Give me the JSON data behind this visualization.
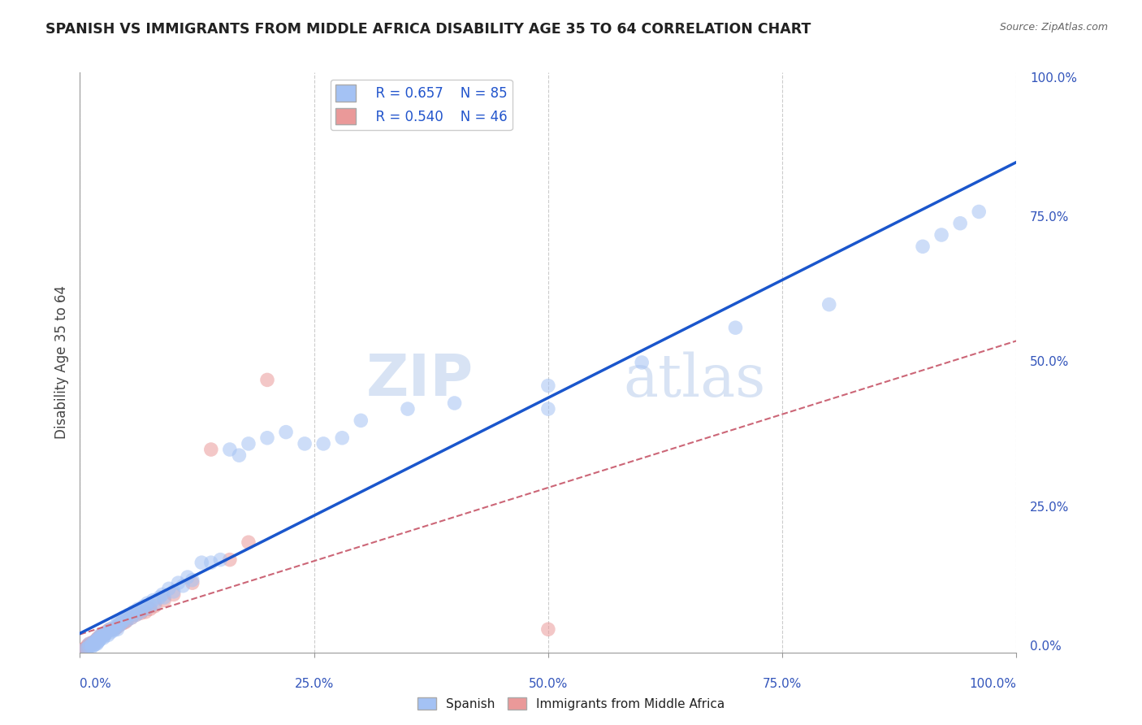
{
  "title": "SPANISH VS IMMIGRANTS FROM MIDDLE AFRICA DISABILITY AGE 35 TO 64 CORRELATION CHART",
  "source": "Source: ZipAtlas.com",
  "ylabel": "Disability Age 35 to 64",
  "legend1_R": "0.657",
  "legend1_N": "85",
  "legend2_R": "0.540",
  "legend2_N": "46",
  "blue_color": "#a4c2f4",
  "pink_color": "#ea9999",
  "trendline_blue": "#1a56cc",
  "trendline_pink": "#cc6677",
  "watermark_zip": "ZIP",
  "watermark_atlas": "atlas",
  "blue_scatter_x": [
    0.005,
    0.008,
    0.01,
    0.01,
    0.012,
    0.013,
    0.013,
    0.015,
    0.015,
    0.016,
    0.017,
    0.018,
    0.018,
    0.019,
    0.02,
    0.02,
    0.021,
    0.022,
    0.022,
    0.023,
    0.025,
    0.025,
    0.026,
    0.027,
    0.028,
    0.03,
    0.031,
    0.032,
    0.033,
    0.035,
    0.036,
    0.037,
    0.038,
    0.04,
    0.041,
    0.042,
    0.043,
    0.045,
    0.046,
    0.048,
    0.05,
    0.052,
    0.055,
    0.057,
    0.06,
    0.062,
    0.065,
    0.068,
    0.07,
    0.072,
    0.075,
    0.078,
    0.08,
    0.085,
    0.088,
    0.09,
    0.095,
    0.1,
    0.105,
    0.11,
    0.115,
    0.12,
    0.13,
    0.14,
    0.15,
    0.16,
    0.17,
    0.18,
    0.2,
    0.22,
    0.24,
    0.26,
    0.28,
    0.3,
    0.35,
    0.4,
    0.5,
    0.6,
    0.7,
    0.8,
    0.9,
    0.92,
    0.94,
    0.96,
    0.5
  ],
  "blue_scatter_y": [
    0.005,
    0.007,
    0.01,
    0.015,
    0.012,
    0.01,
    0.015,
    0.013,
    0.018,
    0.014,
    0.02,
    0.015,
    0.022,
    0.018,
    0.02,
    0.025,
    0.022,
    0.025,
    0.03,
    0.028,
    0.025,
    0.03,
    0.028,
    0.032,
    0.035,
    0.03,
    0.038,
    0.04,
    0.035,
    0.04,
    0.038,
    0.045,
    0.042,
    0.04,
    0.055,
    0.05,
    0.048,
    0.052,
    0.06,
    0.058,
    0.055,
    0.065,
    0.06,
    0.07,
    0.065,
    0.075,
    0.07,
    0.08,
    0.075,
    0.085,
    0.08,
    0.09,
    0.085,
    0.095,
    0.1,
    0.095,
    0.11,
    0.105,
    0.12,
    0.115,
    0.13,
    0.125,
    0.155,
    0.155,
    0.16,
    0.35,
    0.34,
    0.36,
    0.37,
    0.38,
    0.36,
    0.36,
    0.37,
    0.4,
    0.42,
    0.43,
    0.46,
    0.5,
    0.56,
    0.6,
    0.7,
    0.72,
    0.74,
    0.76,
    0.42
  ],
  "pink_scatter_x": [
    0.003,
    0.005,
    0.006,
    0.007,
    0.008,
    0.008,
    0.009,
    0.01,
    0.01,
    0.011,
    0.012,
    0.013,
    0.014,
    0.015,
    0.016,
    0.017,
    0.018,
    0.019,
    0.02,
    0.022,
    0.023,
    0.025,
    0.027,
    0.03,
    0.032,
    0.035,
    0.038,
    0.04,
    0.042,
    0.045,
    0.048,
    0.05,
    0.055,
    0.06,
    0.065,
    0.07,
    0.075,
    0.08,
    0.09,
    0.1,
    0.12,
    0.14,
    0.16,
    0.18,
    0.2,
    0.5
  ],
  "pink_scatter_y": [
    0.005,
    0.006,
    0.007,
    0.008,
    0.01,
    0.012,
    0.01,
    0.012,
    0.015,
    0.013,
    0.014,
    0.016,
    0.018,
    0.017,
    0.018,
    0.02,
    0.022,
    0.025,
    0.025,
    0.028,
    0.03,
    0.03,
    0.032,
    0.038,
    0.04,
    0.04,
    0.042,
    0.044,
    0.048,
    0.05,
    0.052,
    0.055,
    0.06,
    0.065,
    0.068,
    0.07,
    0.075,
    0.08,
    0.09,
    0.1,
    0.12,
    0.35,
    0.16,
    0.19,
    0.47,
    0.04
  ],
  "xtick_positions": [
    0.0,
    0.25,
    0.5,
    0.75,
    1.0
  ],
  "xtick_labels": [
    "0.0%",
    "25.0%",
    "50.0%",
    "75.0%",
    "100.0%"
  ],
  "ytick_positions": [
    0.0,
    0.25,
    0.5,
    0.75,
    1.0
  ],
  "ytick_labels": [
    "0.0%",
    "25.0%",
    "50.0%",
    "75.0%",
    "100.0%"
  ]
}
